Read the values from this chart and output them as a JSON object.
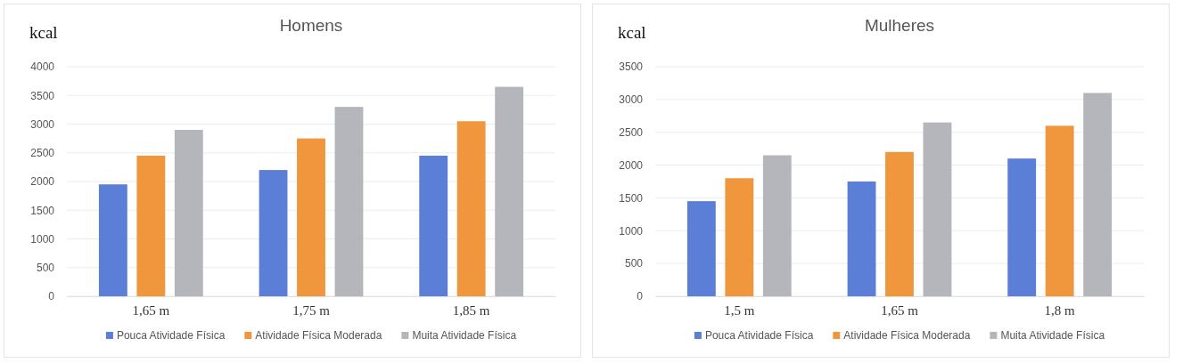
{
  "chart_data": [
    {
      "type": "bar",
      "title": "Homens",
      "ylabel": "kcal",
      "categories": [
        "1,65 m",
        "1,75 m",
        "1,85 m"
      ],
      "series": [
        {
          "name": "Pouca Atividade Física",
          "color": "#5b7fd6",
          "values": [
            1950,
            2200,
            2450
          ]
        },
        {
          "name": "Atividade Física Moderada",
          "color": "#f0963c",
          "values": [
            2450,
            2750,
            3050
          ]
        },
        {
          "name": "Muita Atividade Física",
          "color": "#b4b6bc",
          "values": [
            2900,
            3300,
            3650
          ]
        }
      ],
      "ylim": [
        0,
        4000
      ],
      "yticks": [
        0,
        500,
        1000,
        1500,
        2000,
        2500,
        3000,
        3500,
        4000
      ],
      "grid": "y",
      "legend": "bottom"
    },
    {
      "type": "bar",
      "title": "Mulheres",
      "ylabel": "kcal",
      "categories": [
        "1,5 m",
        "1,65 m",
        "1,8 m"
      ],
      "series": [
        {
          "name": "Pouca Atividade Física",
          "color": "#5b7fd6",
          "values": [
            1450,
            1750,
            2100
          ]
        },
        {
          "name": "Atividade Física Moderada",
          "color": "#f0963c",
          "values": [
            1800,
            2200,
            2600
          ]
        },
        {
          "name": "Muita Atividade Física",
          "color": "#b4b6bc",
          "values": [
            2150,
            2650,
            3100
          ]
        }
      ],
      "ylim": [
        0,
        3500
      ],
      "yticks": [
        0,
        500,
        1000,
        1500,
        2000,
        2500,
        3000,
        3500
      ],
      "grid": "y",
      "legend": "bottom"
    }
  ]
}
